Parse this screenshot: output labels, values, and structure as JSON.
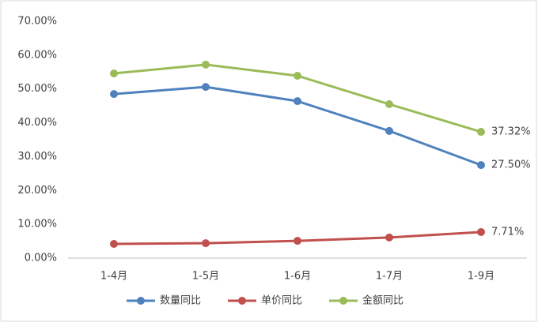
{
  "chart_data": {
    "type": "line",
    "categories": [
      "1-4月",
      "1-5月",
      "1-6月",
      "1-7月",
      "1-9月"
    ],
    "series": [
      {
        "name": "数量同比",
        "color": "#4f81bd",
        "values": [
          48.5,
          50.6,
          46.4,
          37.6,
          27.5
        ],
        "value_labels": [
          null,
          null,
          null,
          null,
          "27.50%"
        ]
      },
      {
        "name": "单价同比",
        "color": "#c0504d",
        "values": [
          4.2,
          4.4,
          5.1,
          6.1,
          7.71
        ],
        "value_labels": [
          null,
          null,
          null,
          null,
          "7.71%"
        ]
      },
      {
        "name": "金额同比",
        "color": "#9bbb59",
        "values": [
          54.6,
          57.2,
          53.9,
          45.5,
          37.32
        ],
        "value_labels": [
          null,
          null,
          null,
          null,
          "37.32%"
        ]
      }
    ],
    "ylim": [
      0,
      70
    ],
    "yticks": [
      {
        "value": 0,
        "label": "0.00%"
      },
      {
        "value": 10,
        "label": "10.00%"
      },
      {
        "value": 20,
        "label": "20.00%"
      },
      {
        "value": 30,
        "label": "30.00%"
      },
      {
        "value": 40,
        "label": "40.00%"
      },
      {
        "value": 50,
        "label": "50.00%"
      },
      {
        "value": 60,
        "label": "60.00%"
      },
      {
        "value": 70,
        "label": "70.00%"
      }
    ],
    "grid": false
  }
}
